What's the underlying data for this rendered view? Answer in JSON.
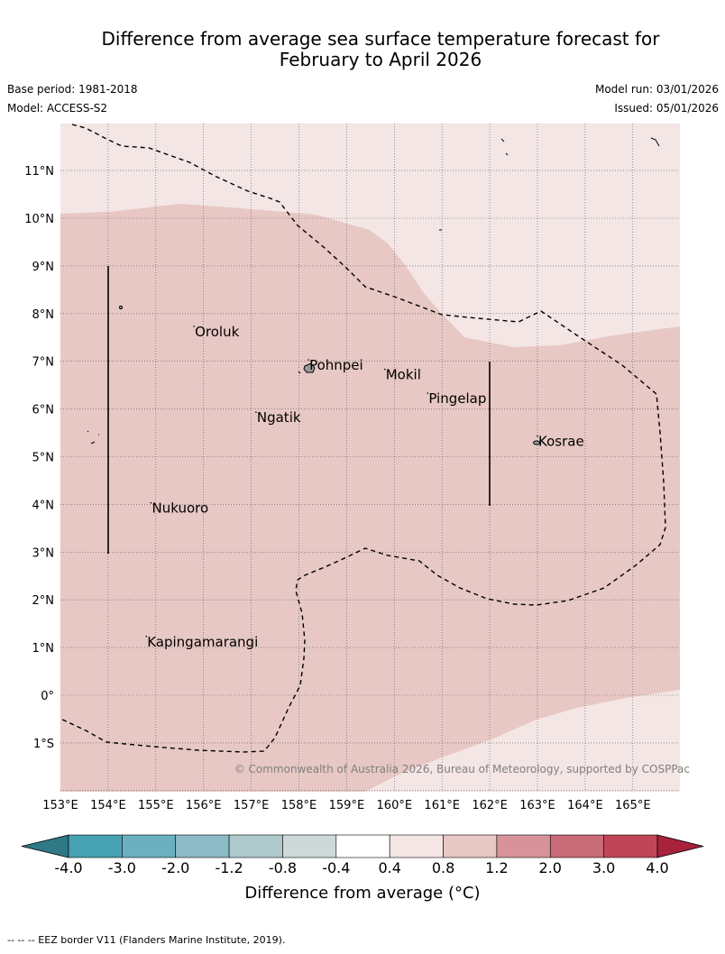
{
  "header": {
    "title_line1": "Difference from average sea surface temperature forecast for",
    "title_line2": "February to April 2026",
    "base_period": "Base period: 1981-2018",
    "model": "Model: ACCESS-S2",
    "model_run": "Model run: 03/01/2026",
    "issued": "Issued: 05/01/2026"
  },
  "map": {
    "lon_labels": [
      "153°E",
      "154°E",
      "155°E",
      "156°E",
      "157°E",
      "158°E",
      "159°E",
      "160°E",
      "161°E",
      "162°E",
      "163°E",
      "164°E",
      "165°E"
    ],
    "lat_labels": [
      "11°N",
      "10°N",
      "9°N",
      "8°N",
      "7°N",
      "6°N",
      "5°N",
      "4°N",
      "3°N",
      "2°N",
      "1°N",
      "0°",
      "1°S"
    ],
    "places": [
      {
        "name": "Oroluk",
        "lon": 155.8,
        "lat": 7.6
      },
      {
        "name": "Pohnpei",
        "lon": 158.2,
        "lat": 6.9
      },
      {
        "name": "Mokil",
        "lon": 159.8,
        "lat": 6.7
      },
      {
        "name": "Pingelap",
        "lon": 160.7,
        "lat": 6.2
      },
      {
        "name": "Ngatik",
        "lon": 157.1,
        "lat": 5.8
      },
      {
        "name": "Kosrae",
        "lon": 163.0,
        "lat": 5.3
      },
      {
        "name": "Nukuoro",
        "lon": 154.9,
        "lat": 3.9
      },
      {
        "name": "Kapingamarangi",
        "lon": 154.8,
        "lat": 1.1
      }
    ],
    "copyright": "© Commonwealth of Australia 2026, Bureau of Meteorology, supported by COSPPac",
    "colors": {
      "band_0_4_0_8": "#f4e6e5",
      "band_0_8_1_2": "#e7c8c4",
      "grid": "#555555",
      "land": "#9a9a9a"
    }
  },
  "colorbar": {
    "ticks": [
      "-4.0",
      "-3.0",
      "-2.0",
      "-1.2",
      "-0.8",
      "-0.4",
      "0.4",
      "0.8",
      "1.2",
      "2.0",
      "3.0",
      "4.0"
    ],
    "colors": [
      "#2f7886",
      "#47a2b4",
      "#6ab0c0",
      "#8cbac5",
      "#adc9cc",
      "#cdd9d9",
      "#ffffff",
      "#f4e6e5",
      "#e7c8c4",
      "#d8939a",
      "#ca6b78",
      "#c04657",
      "#a8223c"
    ],
    "label": "Difference from average (°C)"
  },
  "footer": {
    "eez_note": "--  --  -- EEZ border V11 (Flanders Marine Institute, 2019)."
  }
}
